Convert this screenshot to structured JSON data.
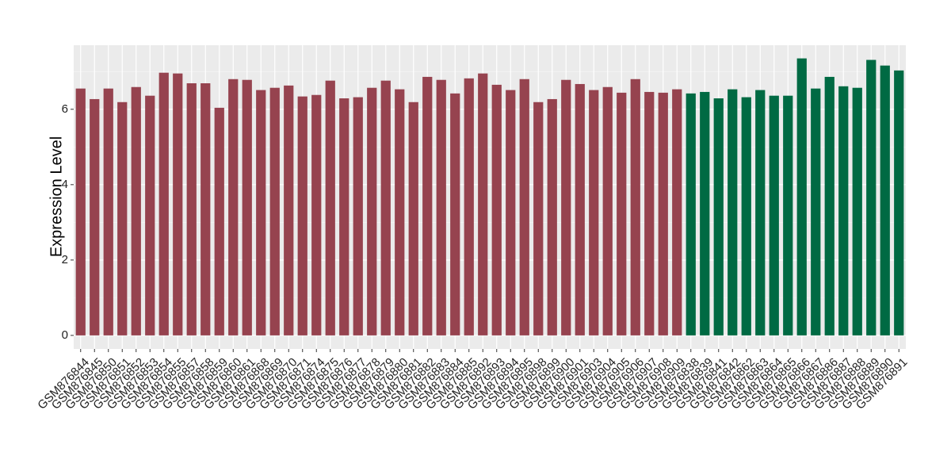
{
  "chart_data": {
    "type": "bar",
    "y_label": "Expression Level",
    "categories": [
      "GSM876844",
      "GSM876845",
      "GSM876850",
      "GSM876851",
      "GSM876852",
      "GSM876853",
      "GSM876854",
      "GSM876855",
      "GSM876857",
      "GSM876858",
      "GSM876859",
      "GSM876860",
      "GSM876861",
      "GSM876868",
      "GSM876869",
      "GSM876870",
      "GSM876871",
      "GSM876874",
      "GSM876875",
      "GSM876876",
      "GSM876877",
      "GSM876878",
      "GSM876879",
      "GSM876880",
      "GSM876881",
      "GSM876882",
      "GSM876883",
      "GSM876884",
      "GSM876885",
      "GSM876892",
      "GSM876893",
      "GSM876894",
      "GSM876895",
      "GSM876898",
      "GSM876899",
      "GSM876900",
      "GSM876901",
      "GSM876903",
      "GSM876904",
      "GSM876905",
      "GSM876906",
      "GSM876907",
      "GSM876908",
      "GSM876909",
      "GSM876838",
      "GSM876839",
      "GSM876841",
      "GSM876842",
      "GSM876862",
      "GSM876863",
      "GSM876864",
      "GSM876865",
      "GSM876866",
      "GSM876867",
      "GSM876886",
      "GSM876887",
      "GSM876888",
      "GSM876889",
      "GSM876890",
      "GSM876891"
    ],
    "values": [
      6.55,
      6.27,
      6.55,
      6.19,
      6.59,
      6.36,
      6.97,
      6.95,
      6.69,
      6.69,
      6.04,
      6.8,
      6.78,
      6.51,
      6.57,
      6.63,
      6.34,
      6.38,
      6.76,
      6.29,
      6.32,
      6.57,
      6.76,
      6.53,
      6.19,
      6.86,
      6.78,
      6.42,
      6.82,
      6.95,
      6.65,
      6.51,
      6.8,
      6.19,
      6.27,
      6.78,
      6.67,
      6.51,
      6.59,
      6.44,
      6.8,
      6.46,
      6.44,
      6.53,
      6.42,
      6.46,
      6.29,
      6.53,
      6.32,
      6.51,
      6.36,
      6.36,
      7.35,
      6.55,
      6.86,
      6.61,
      6.57,
      7.31,
      7.16,
      7.03
    ],
    "colors": [
      "#96434f",
      "#96434f",
      "#96434f",
      "#96434f",
      "#96434f",
      "#96434f",
      "#96434f",
      "#96434f",
      "#96434f",
      "#96434f",
      "#96434f",
      "#96434f",
      "#96434f",
      "#96434f",
      "#96434f",
      "#96434f",
      "#96434f",
      "#96434f",
      "#96434f",
      "#96434f",
      "#96434f",
      "#96434f",
      "#96434f",
      "#96434f",
      "#96434f",
      "#96434f",
      "#96434f",
      "#96434f",
      "#96434f",
      "#96434f",
      "#96434f",
      "#96434f",
      "#96434f",
      "#96434f",
      "#96434f",
      "#96434f",
      "#96434f",
      "#96434f",
      "#96434f",
      "#96434f",
      "#96434f",
      "#96434f",
      "#96434f",
      "#96434f",
      "#006a43",
      "#006a43",
      "#006a43",
      "#006a43",
      "#006a43",
      "#006a43",
      "#006a43",
      "#006a43",
      "#006a43",
      "#006a43",
      "#006a43",
      "#006a43",
      "#006a43",
      "#006a43",
      "#006a43",
      "#006a43"
    ],
    "ylim": [
      -0.36,
      7.7
    ],
    "yticks": [
      0,
      2,
      4,
      6
    ],
    "minor_yticks": [
      1,
      3,
      5,
      7
    ],
    "grid": true
  }
}
